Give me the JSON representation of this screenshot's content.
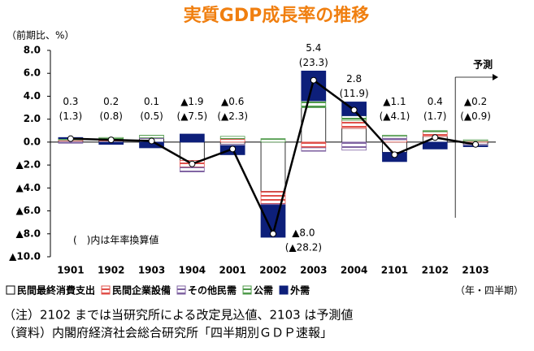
{
  "chart_data": {
    "type": "bar",
    "title": "実質GDP成長率の推移",
    "y_label": "（前期比、%）",
    "categories": [
      "1901",
      "1902",
      "1903",
      "1904",
      "2001",
      "2002",
      "2003",
      "2004",
      "2101",
      "2102",
      "2103"
    ],
    "series": [
      {
        "name": "民間最終消費支出",
        "color": "#ffffff",
        "values": [
          0.1,
          0.1,
          0.3,
          -1.6,
          -0.2,
          -4.3,
          3.0,
          1.2,
          -0.9,
          0.5,
          -0.2
        ]
      },
      {
        "name": "民間企業設備",
        "color": "#e0504a",
        "pattern": "hatch",
        "values": [
          0.1,
          0.1,
          0.0,
          -0.6,
          0.3,
          -1.1,
          -0.5,
          0.7,
          0.2,
          0.4,
          0.1
        ]
      },
      {
        "name": "その他民需",
        "color": "#8064a2",
        "pattern": "hatch",
        "values": [
          -0.1,
          0.0,
          0.1,
          -0.4,
          -0.1,
          -0.1,
          -0.3,
          -0.7,
          0.3,
          0.0,
          -0.1
        ]
      },
      {
        "name": "公需",
        "color": "#4f9a4a",
        "pattern": "hatch",
        "values": [
          0.1,
          0.2,
          0.2,
          0.0,
          0.2,
          0.3,
          0.6,
          0.4,
          0.1,
          0.1,
          0.1
        ]
      },
      {
        "name": "外需",
        "color": "#0d1f7a",
        "values": [
          0.1,
          -0.2,
          -0.5,
          0.7,
          -0.8,
          -2.8,
          2.6,
          1.2,
          -0.8,
          -0.6,
          -0.1
        ]
      }
    ],
    "total": {
      "color": "#000000",
      "values": [
        0.3,
        0.2,
        0.1,
        -1.9,
        -0.6,
        -8.0,
        5.4,
        2.8,
        -1.1,
        0.4,
        -0.2
      ],
      "value_labels": [
        "0.3",
        "0.2",
        "0.1",
        "▲1.9",
        "▲0.6",
        "▲8.0",
        "5.4",
        "2.8",
        "▲1.1",
        "0.4",
        "▲0.2"
      ]
    },
    "annualized": {
      "values": [
        1.3,
        0.8,
        0.5,
        -7.5,
        -2.3,
        -28.2,
        23.3,
        11.9,
        -4.1,
        1.7,
        -0.9
      ],
      "value_labels": [
        "(1.3)",
        "(0.8)",
        "(0.5)",
        "(▲7.5)",
        "(▲2.3)",
        "(▲28.2)",
        "(23.3)",
        "(11.9)",
        "(▲4.1)",
        "(1.7)",
        "(▲0.9)"
      ]
    },
    "ylim": [
      -10,
      8
    ],
    "yticks": [
      {
        "value": 8,
        "label": "8.0"
      },
      {
        "value": 6,
        "label": "6.0"
      },
      {
        "value": 4,
        "label": "4.0"
      },
      {
        "value": 2,
        "label": "2.0"
      },
      {
        "value": 0,
        "label": "0.0"
      },
      {
        "value": -2,
        "label": "▲2.0"
      },
      {
        "value": -4,
        "label": "▲4.0"
      },
      {
        "value": -6,
        "label": "▲6.0"
      },
      {
        "value": -8,
        "label": "▲8.0"
      },
      {
        "value": -10,
        "label": "▲10.0"
      }
    ],
    "grid": false,
    "forecast_label": "予測",
    "annotation": "(　)内は年率換算値",
    "x_unit": "（年・四半期）"
  },
  "notes": [
    "（注）2102 までは当研究所による改定見込値、2103 は予測値",
    "（資料）内閣府経済社会総合研究所「四半期別ＧＤＰ速報」"
  ]
}
